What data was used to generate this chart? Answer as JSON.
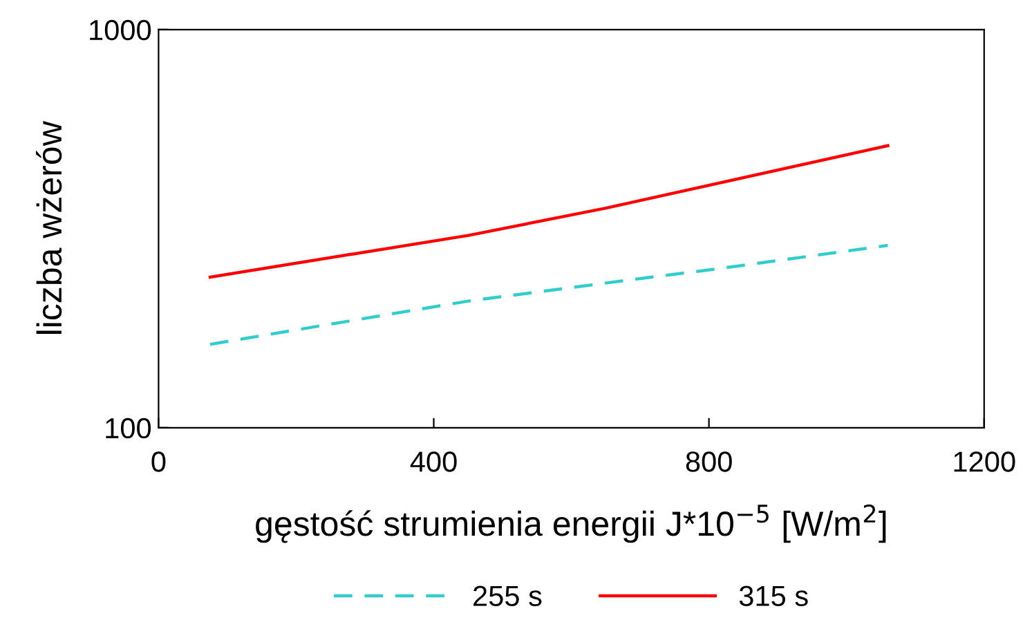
{
  "chart_data": {
    "type": "line",
    "xlabel": "gęstość strumienia energii J*10$^{−5}$ [W/m$^{2}$]",
    "ylabel": "liczba wżerów",
    "log": "y",
    "xlim": [
      0,
      1200
    ],
    "xticks": [
      0,
      400,
      800,
      1200
    ],
    "ylim": [
      100,
      1000
    ],
    "yticks": [
      100,
      1000
    ],
    "grid": false,
    "legend": "bottom",
    "marker": "none",
    "series": [
      {
        "name": "255 s",
        "color": "#33cccc",
        "line_style": "dashed",
        "x": [
          75,
          450,
          700,
          800,
          1060
        ],
        "values": [
          162,
          208,
          237,
          249,
          287
        ]
      },
      {
        "name": "315 s",
        "color": "#ff0000",
        "line_style": "solid",
        "x": [
          75,
          450,
          650,
          1060
        ],
        "values": [
          239,
          304,
          356,
          511
        ]
      }
    ]
  }
}
